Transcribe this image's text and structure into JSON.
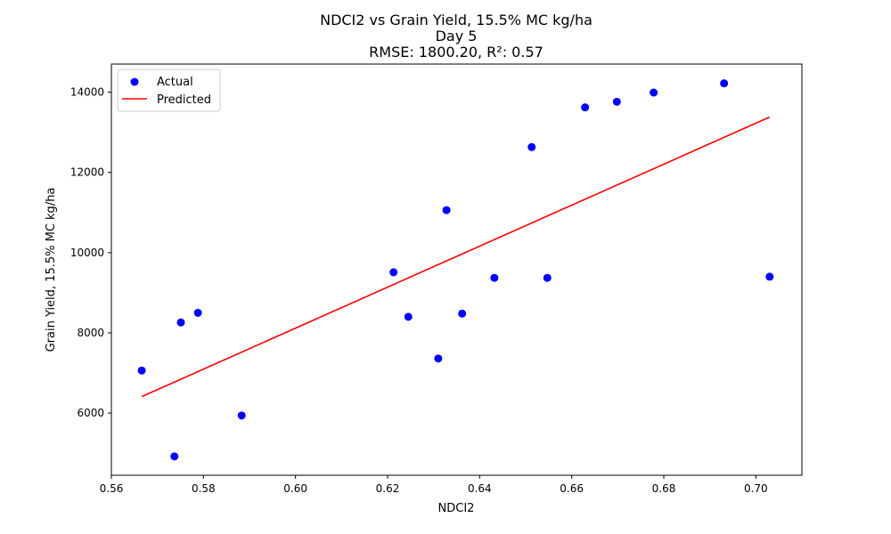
{
  "chart_data": {
    "type": "scatter",
    "title_lines": [
      "NDCI2 vs Grain Yield, 15.5% MC kg/ha",
      "Day 5",
      "RMSE: 1800.20, R²: 0.57"
    ],
    "xlabel": "NDCI2",
    "ylabel": "Grain Yield, 15.5% MC kg/ha",
    "xlim": [
      0.56,
      0.71
    ],
    "ylim": [
      4450,
      14700
    ],
    "xticks": [
      0.56,
      0.58,
      0.6,
      0.62,
      0.64,
      0.66,
      0.68,
      0.7
    ],
    "xtick_labels": [
      "0.56",
      "0.58",
      "0.60",
      "0.62",
      "0.64",
      "0.66",
      "0.68",
      "0.70"
    ],
    "yticks": [
      6000,
      8000,
      10000,
      12000,
      14000
    ],
    "ytick_labels": [
      "6000",
      "8000",
      "10000",
      "12000",
      "14000"
    ],
    "grid": false,
    "legend_position": "top-left",
    "series": [
      {
        "name": "Actual",
        "kind": "scatter",
        "color": "#0000ff",
        "points": [
          {
            "x": 0.5666,
            "y": 7060
          },
          {
            "x": 0.5737,
            "y": 4920
          },
          {
            "x": 0.5751,
            "y": 8260
          },
          {
            "x": 0.5788,
            "y": 8500
          },
          {
            "x": 0.5883,
            "y": 5940
          },
          {
            "x": 0.6213,
            "y": 9510
          },
          {
            "x": 0.6245,
            "y": 8400
          },
          {
            "x": 0.631,
            "y": 7360
          },
          {
            "x": 0.6328,
            "y": 11060
          },
          {
            "x": 0.6362,
            "y": 8480
          },
          {
            "x": 0.6432,
            "y": 9370
          },
          {
            "x": 0.6513,
            "y": 12630
          },
          {
            "x": 0.6547,
            "y": 9370
          },
          {
            "x": 0.6629,
            "y": 13620
          },
          {
            "x": 0.6698,
            "y": 13760
          },
          {
            "x": 0.6778,
            "y": 13990
          },
          {
            "x": 0.6931,
            "y": 14220
          },
          {
            "x": 0.703,
            "y": 9400
          }
        ]
      },
      {
        "name": "Predicted",
        "kind": "line",
        "color": "#ff0000",
        "points": [
          {
            "x": 0.5666,
            "y": 6410
          },
          {
            "x": 0.703,
            "y": 13380
          }
        ]
      }
    ]
  }
}
